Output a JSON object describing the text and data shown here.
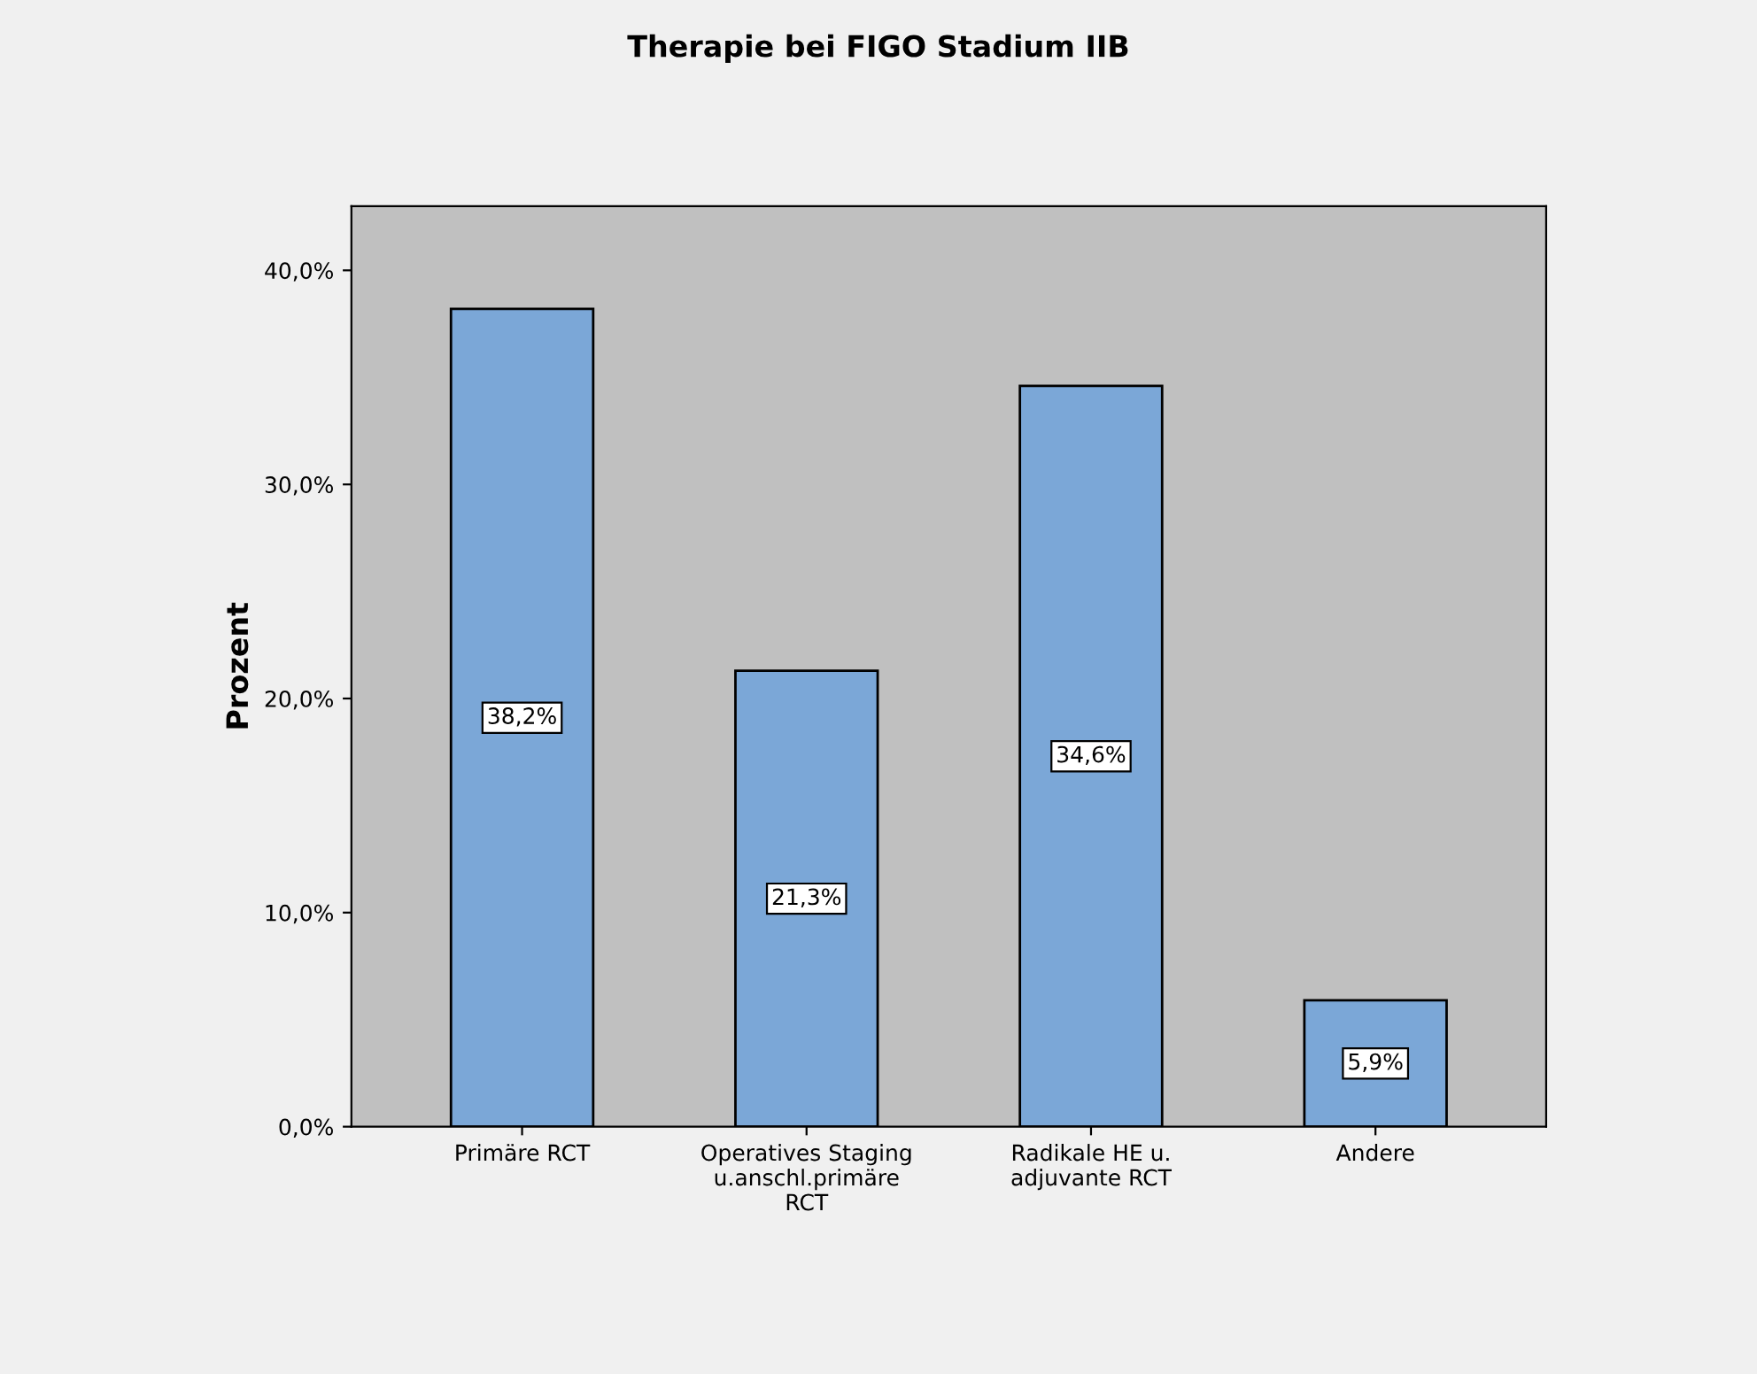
{
  "chart_data": {
    "type": "bar",
    "title": "Therapie bei FIGO Stadium IIB",
    "ylabel": "Prozent",
    "categories": [
      "Primäre RCT",
      "Operatives Staging\nu.anschl.primäre\nRCT",
      "Radikale HE u.\nadjuvante RCT",
      "Andere"
    ],
    "values": [
      38.2,
      21.3,
      34.6,
      5.9
    ],
    "value_labels": [
      "38,2%",
      "21,3%",
      "34,6%",
      "5,9%"
    ],
    "color": "#7ba7d7",
    "ylim": [
      0,
      43
    ],
    "yticks": [
      {
        "value": 0,
        "label": "0,0%"
      },
      {
        "value": 10,
        "label": "10,0%"
      },
      {
        "value": 20,
        "label": "20,0%"
      },
      {
        "value": 30,
        "label": "30,0%"
      },
      {
        "value": 40,
        "label": "40,0%"
      }
    ],
    "grid": false,
    "legend": false
  }
}
